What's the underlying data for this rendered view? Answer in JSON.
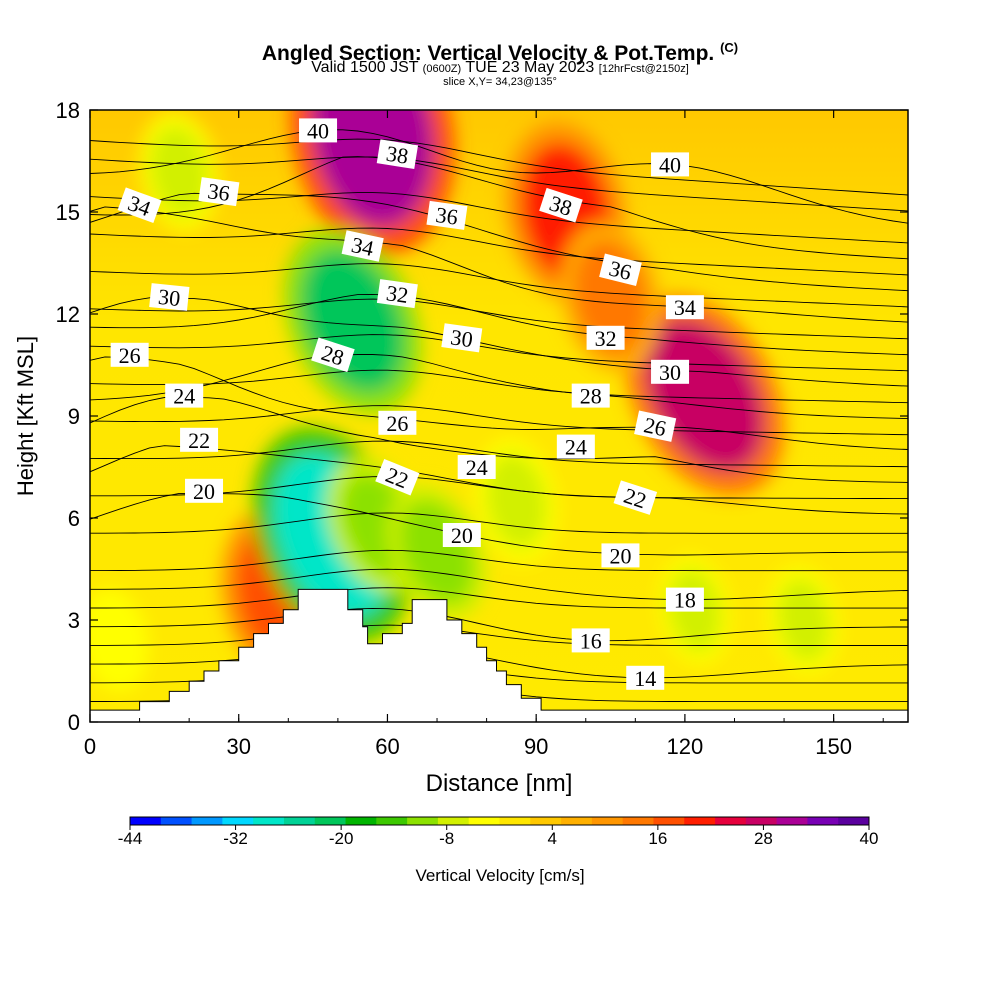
{
  "header": {
    "title": "Angled Section: Vertical Velocity & Pot.Temp.",
    "title_mark": "(C)",
    "valid_prefix": "Valid 1500 JST",
    "valid_utc": "(0600Z)",
    "valid_date": "TUE 23 May 2023",
    "valid_run": "[12hrFcst@2150z]",
    "slice": "slice X,Y= 34,23@135°"
  },
  "colors": {
    "frame": "#000000",
    "terrain": "#ffffff",
    "contour": "#000000",
    "label_box": "#ffffff"
  },
  "chart_data": {
    "type": "heatmap",
    "xlabel": "Distance [nm]",
    "ylabel": "Height [Kft MSL]",
    "xlim": [
      0,
      165
    ],
    "ylim": [
      0,
      18
    ],
    "xticks": [
      0,
      30,
      60,
      90,
      120,
      150
    ],
    "yticks": [
      0,
      3,
      6,
      9,
      12,
      15,
      18
    ],
    "colorbar": {
      "label": "Vertical Velocity [cm/s]",
      "tick_labels": [
        -44,
        -32,
        -20,
        -8,
        4,
        16,
        28,
        40
      ],
      "range": [
        -44,
        40
      ],
      "colors": [
        "#0000ff",
        "#0050ff",
        "#0098ff",
        "#00d8ff",
        "#00e6c8",
        "#00d296",
        "#00c65a",
        "#00b400",
        "#3cc800",
        "#8ce100",
        "#d2f000",
        "#ffff00",
        "#ffe600",
        "#ffc800",
        "#ffb000",
        "#ff9600",
        "#ff7800",
        "#ff5000",
        "#ff1e00",
        "#e6003c",
        "#c80064",
        "#aa0096",
        "#7800b4",
        "#5a009e"
      ]
    },
    "vertical_velocity_features": [
      {
        "kind": "updraft",
        "center": [
          57,
          17.3
        ],
        "peak": 32
      },
      {
        "kind": "updraft",
        "center": [
          96,
          15.0
        ],
        "peak": 20
      },
      {
        "kind": "updraft",
        "center": [
          124,
          9.6
        ],
        "peak": 26
      },
      {
        "kind": "updraft",
        "center": [
          105,
          12.5
        ],
        "peak": 14
      },
      {
        "kind": "updraft",
        "center": [
          38,
          3.8
        ],
        "peak": 18
      },
      {
        "kind": "downdraft",
        "center": [
          53,
          11.8
        ],
        "peak": -22
      },
      {
        "kind": "downdraft",
        "center": [
          49,
          5.5
        ],
        "peak": -28
      },
      {
        "kind": "downdraft",
        "center": [
          58,
          5.8
        ],
        "peak": -12
      },
      {
        "kind": "downdraft",
        "center": [
          70,
          5.0
        ],
        "peak": -12
      },
      {
        "kind": "downdraft",
        "center": [
          86,
          6.5
        ],
        "peak": -9
      },
      {
        "kind": "downdraft",
        "center": [
          18,
          16.2
        ],
        "peak": -8
      },
      {
        "kind": "downdraft",
        "center": [
          122,
          3.3
        ],
        "peak": -6
      },
      {
        "kind": "downdraft",
        "center": [
          144,
          3.0
        ],
        "peak": -6
      },
      {
        "kind": "downdraft",
        "center": [
          5,
          2.4
        ],
        "peak": -5
      }
    ],
    "terrain_profile": [
      [
        0,
        0.35
      ],
      [
        10,
        0.35
      ],
      [
        10,
        0.6
      ],
      [
        16,
        0.6
      ],
      [
        16,
        0.9
      ],
      [
        20,
        0.9
      ],
      [
        20,
        1.2
      ],
      [
        23,
        1.2
      ],
      [
        23,
        1.5
      ],
      [
        26,
        1.5
      ],
      [
        26,
        1.8
      ],
      [
        30,
        1.8
      ],
      [
        30,
        2.2
      ],
      [
        33,
        2.2
      ],
      [
        33,
        2.6
      ],
      [
        36,
        2.6
      ],
      [
        36,
        2.9
      ],
      [
        39,
        2.9
      ],
      [
        39,
        3.3
      ],
      [
        42,
        3.3
      ],
      [
        42,
        3.9
      ],
      [
        52,
        3.9
      ],
      [
        52,
        3.3
      ],
      [
        55,
        3.3
      ],
      [
        55,
        2.8
      ],
      [
        56,
        2.8
      ],
      [
        56,
        2.3
      ],
      [
        59,
        2.3
      ],
      [
        59,
        2.6
      ],
      [
        63,
        2.6
      ],
      [
        63,
        2.9
      ],
      [
        65,
        2.9
      ],
      [
        65,
        3.6
      ],
      [
        72,
        3.6
      ],
      [
        72,
        3.0
      ],
      [
        75,
        3.0
      ],
      [
        75,
        2.6
      ],
      [
        78,
        2.6
      ],
      [
        78,
        2.2
      ],
      [
        80,
        2.2
      ],
      [
        80,
        1.8
      ],
      [
        82,
        1.8
      ],
      [
        82,
        1.5
      ],
      [
        84,
        1.5
      ],
      [
        84,
        1.1
      ],
      [
        87,
        1.1
      ],
      [
        87,
        0.7
      ],
      [
        91,
        0.7
      ],
      [
        91,
        0.35
      ],
      [
        165,
        0.35
      ]
    ],
    "isentrope_labels": [
      {
        "value": "40",
        "x": 46,
        "y": 17.4,
        "angle": 0
      },
      {
        "value": "38",
        "x": 62,
        "y": 16.7,
        "angle": 9
      },
      {
        "value": "36",
        "x": 26,
        "y": 15.6,
        "angle": 8
      },
      {
        "value": "34",
        "x": 10,
        "y": 15.2,
        "angle": 20
      },
      {
        "value": "36",
        "x": 72,
        "y": 14.9,
        "angle": 8
      },
      {
        "value": "38",
        "x": 95,
        "y": 15.2,
        "angle": 18
      },
      {
        "value": "40",
        "x": 117,
        "y": 16.4,
        "angle": 0
      },
      {
        "value": "34",
        "x": 55,
        "y": 14.0,
        "angle": 12
      },
      {
        "value": "36",
        "x": 107,
        "y": 13.3,
        "angle": 14
      },
      {
        "value": "32",
        "x": 62,
        "y": 12.6,
        "angle": 8
      },
      {
        "value": "30",
        "x": 16,
        "y": 12.5,
        "angle": 6
      },
      {
        "value": "34",
        "x": 120,
        "y": 12.2,
        "angle": 0
      },
      {
        "value": "30",
        "x": 75,
        "y": 11.3,
        "angle": 8
      },
      {
        "value": "32",
        "x": 104,
        "y": 11.3,
        "angle": 0
      },
      {
        "value": "26",
        "x": 8,
        "y": 10.8,
        "angle": 0
      },
      {
        "value": "28",
        "x": 49,
        "y": 10.8,
        "angle": 18
      },
      {
        "value": "30",
        "x": 117,
        "y": 10.3,
        "angle": 0
      },
      {
        "value": "24",
        "x": 19,
        "y": 9.6,
        "angle": 0
      },
      {
        "value": "28",
        "x": 101,
        "y": 9.6,
        "angle": 0
      },
      {
        "value": "26",
        "x": 62,
        "y": 8.8,
        "angle": 0
      },
      {
        "value": "26",
        "x": 114,
        "y": 8.7,
        "angle": 12
      },
      {
        "value": "22",
        "x": 22,
        "y": 8.3,
        "angle": 0
      },
      {
        "value": "24",
        "x": 98,
        "y": 8.1,
        "angle": 0
      },
      {
        "value": "22",
        "x": 62,
        "y": 7.2,
        "angle": 22
      },
      {
        "value": "24",
        "x": 78,
        "y": 7.5,
        "angle": 0
      },
      {
        "value": "20",
        "x": 23,
        "y": 6.8,
        "angle": 0
      },
      {
        "value": "22",
        "x": 110,
        "y": 6.6,
        "angle": 18
      },
      {
        "value": "20",
        "x": 75,
        "y": 5.5,
        "angle": 0
      },
      {
        "value": "20",
        "x": 107,
        "y": 4.9,
        "angle": 0
      },
      {
        "value": "18",
        "x": 120,
        "y": 3.6,
        "angle": 0
      },
      {
        "value": "16",
        "x": 101,
        "y": 2.4,
        "angle": 0
      },
      {
        "value": "14",
        "x": 112,
        "y": 1.3,
        "angle": 0
      }
    ]
  }
}
